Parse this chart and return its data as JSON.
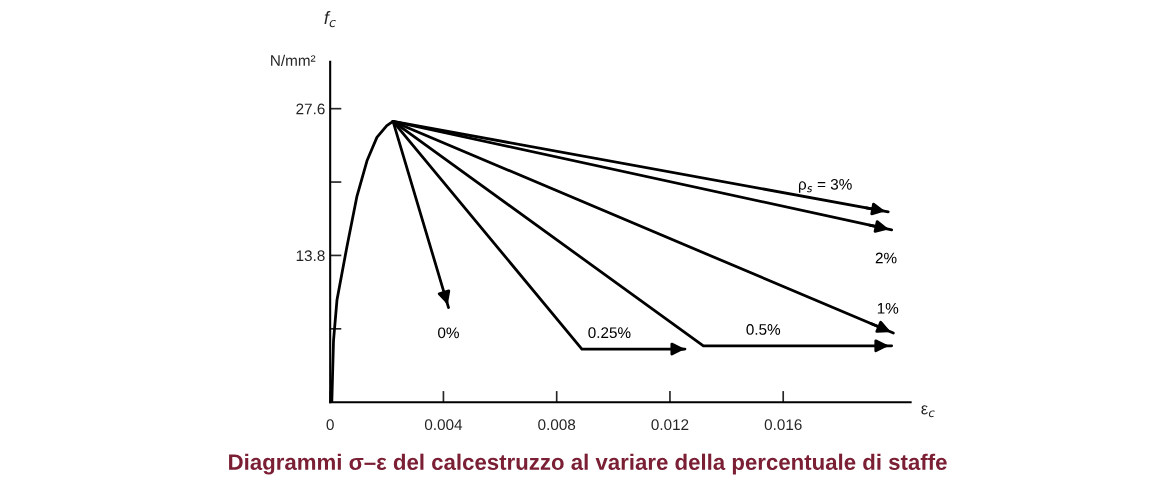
{
  "chart_data": {
    "type": "line",
    "title": "Diagrammi σ–ε del calcestruzzo al variare della percentuale di staffe",
    "xlabel": "ε$_{c}$",
    "ylabel": "f$_{c}$",
    "annotations": [
      "N/mm²"
    ],
    "series": [
      {
        "color": "#000000",
        "x": [
          0,
          5.9e-05,
          0.000118,
          0.00024,
          0.00059,
          0.00094,
          0.0013,
          0.00165,
          0.002,
          0.00222
        ],
        "values": [
          0,
          0.1,
          5.8,
          9.6,
          14.6,
          19.3,
          22.7,
          24.9,
          26.0,
          26.4
        ]
      },
      {
        "name": "ρ$_{s}$ = 3%",
        "color": "#000000",
        "x": [
          0.00222,
          0.01971
        ],
        "values": [
          26.4,
          17.9
        ]
      },
      {
        "name": "2%",
        "color": "#000000",
        "x": [
          0.00222,
          0.01983
        ],
        "values": [
          26.4,
          16.2
        ]
      },
      {
        "name": "1%",
        "color": "#000000",
        "x": [
          0.00222,
          0.01989
        ],
        "values": [
          26.4,
          6.5
        ]
      },
      {
        "name": "0.5%",
        "color": "#000000",
        "x": [
          0.00222,
          0.01318,
          0.01983
        ],
        "values": [
          26.4,
          5.3,
          5.3
        ]
      },
      {
        "name": "0.25%",
        "color": "#000000",
        "x": [
          0.00222,
          0.00889,
          0.01253
        ],
        "values": [
          26.4,
          5.0,
          5.0
        ]
      },
      {
        "name": "0%",
        "color": "#000000",
        "x": [
          0.00222,
          0.00418
        ],
        "values": [
          26.4,
          8.9
        ]
      }
    ],
    "xlim": [
      0,
      0.0205
    ],
    "ylim": [
      0,
      32
    ],
    "xticks": [
      {
        "value": 0,
        "label": "0"
      },
      0.004,
      0.008,
      0.012,
      0.016
    ],
    "yticks": [
      {
        "value": 6.9,
        "label": null
      },
      13.8,
      {
        "value": 20.7,
        "label": null
      },
      27.6
    ],
    "grid": false,
    "legend": false,
    "line_style": "solid",
    "marker": "none"
  }
}
